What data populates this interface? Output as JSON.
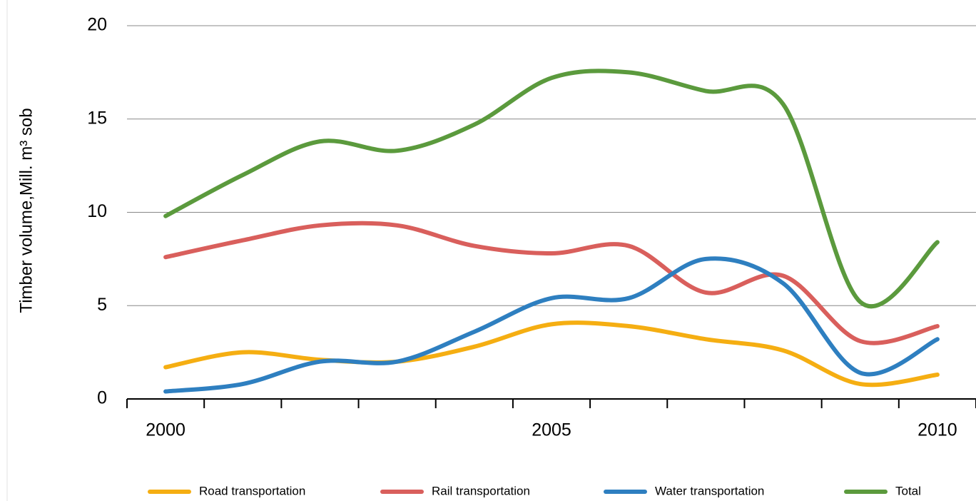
{
  "chart_data": {
    "type": "line",
    "y_label": "Timber volume,Mill.  m³ sob",
    "categories": [
      "2000",
      null,
      null,
      null,
      null,
      "2005",
      null,
      null,
      null,
      null,
      "2010"
    ],
    "ylim": [
      0,
      20
    ],
    "yticks": [
      0,
      5,
      10,
      15,
      20
    ],
    "grid": true,
    "smooth": true,
    "legend": "bottom",
    "series": [
      {
        "name": "Road transportation",
        "color": "#f5ae12",
        "values": [
          1.7,
          2.5,
          2.1,
          2.0,
          2.8,
          4.0,
          3.9,
          3.2,
          2.6,
          0.8,
          1.3
        ]
      },
      {
        "name": "Rail transportation",
        "color": "#d95f5c",
        "values": [
          7.6,
          8.5,
          9.3,
          9.3,
          8.2,
          7.8,
          8.2,
          5.7,
          6.6,
          3.1,
          3.9
        ]
      },
      {
        "name": "Water transportation",
        "color": "#2e7fc0",
        "values": [
          0.4,
          0.8,
          2.0,
          2.0,
          3.6,
          5.4,
          5.4,
          7.5,
          6.2,
          1.4,
          3.2
        ]
      },
      {
        "name": "Total",
        "color": "#5b9a3d",
        "values": [
          9.8,
          12.0,
          13.8,
          13.3,
          14.7,
          17.2,
          17.5,
          16.5,
          15.8,
          5.2,
          8.4
        ]
      }
    ]
  }
}
